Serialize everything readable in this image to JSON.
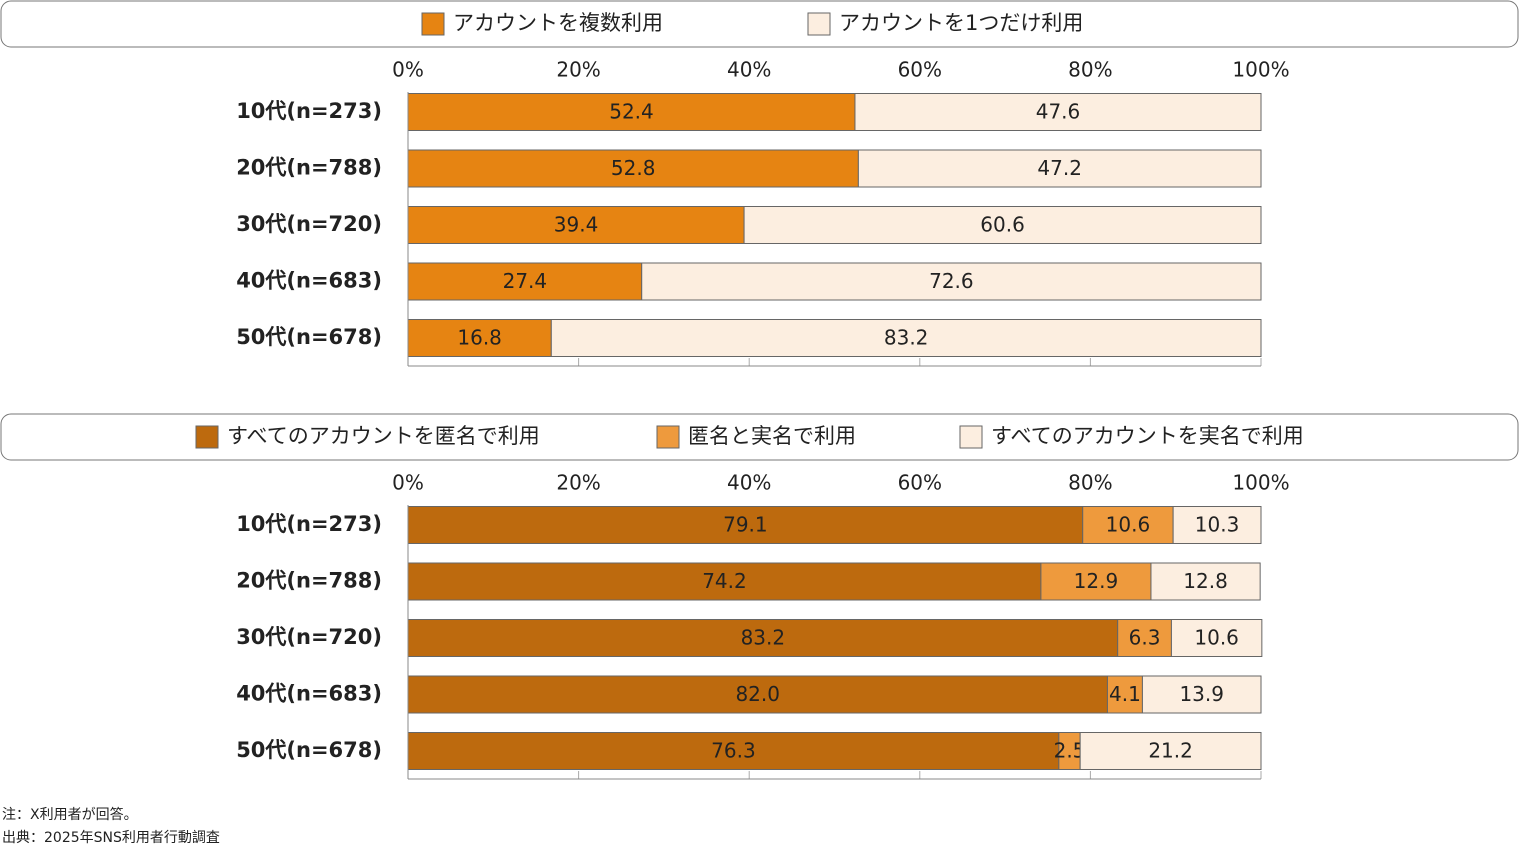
{
  "chart_data": [
    {
      "type": "stacked_barh",
      "legend_position": "top",
      "categories": [
        "10代(n=273)",
        "20代(n=788)",
        "30代(n=720)",
        "40代(n=683)",
        "50代(n=678)"
      ],
      "series": [
        {
          "name": "アカウントを複数利用",
          "color": "#E68412",
          "values": [
            52.4,
            52.8,
            39.4,
            27.4,
            16.8
          ]
        },
        {
          "name": "アカウントを1つだけ利用",
          "color": "#FCEEE0",
          "values": [
            47.6,
            47.2,
            60.6,
            72.6,
            83.2
          ]
        }
      ],
      "xlim": [
        0,
        100
      ],
      "xticks": [
        {
          "value": 0,
          "label": "0%"
        },
        {
          "value": 20,
          "label": "20%"
        },
        {
          "value": 40,
          "label": "40%"
        },
        {
          "value": 60,
          "label": "60%"
        },
        {
          "value": 80,
          "label": "80%"
        },
        {
          "value": 100,
          "label": "100%"
        }
      ]
    },
    {
      "type": "stacked_barh",
      "legend_position": "top",
      "categories": [
        "10代(n=273)",
        "20代(n=788)",
        "30代(n=720)",
        "40代(n=683)",
        "50代(n=678)"
      ],
      "series": [
        {
          "name": "すべてのアカウントを匿名で利用",
          "color": "#BD6A0E",
          "values": [
            79.1,
            74.2,
            83.2,
            82,
            76.3
          ],
          "value_labels": [
            "79.1",
            "74.2",
            "83.2",
            "82.0",
            "76.3"
          ]
        },
        {
          "name": "匿名と実名で利用",
          "color": "#EE9A3D",
          "values": [
            10.6,
            12.9,
            6.3,
            4.1,
            2.5
          ]
        },
        {
          "name": "すべてのアカウントを実名で利用",
          "color": "#FCEEE0",
          "values": [
            10.3,
            12.8,
            10.6,
            13.9,
            21.2
          ]
        }
      ],
      "xlim": [
        0,
        100
      ],
      "xticks": [
        {
          "value": 0,
          "label": "0%"
        },
        {
          "value": 20,
          "label": "20%"
        },
        {
          "value": 40,
          "label": "40%"
        },
        {
          "value": 60,
          "label": "60%"
        },
        {
          "value": 80,
          "label": "80%"
        },
        {
          "value": 100,
          "label": "100%"
        }
      ]
    }
  ],
  "footnotes": [
    "注：X利用者が回答。",
    "出典：2025年SNS利用者行動調査"
  ]
}
